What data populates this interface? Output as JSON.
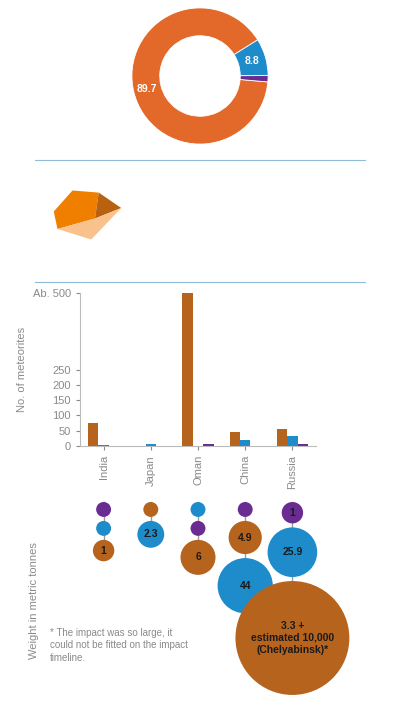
{
  "chart_data": [
    {
      "type": "donut",
      "values": [
        89.7,
        8.8,
        1.5
      ],
      "colors": [
        "#E3692B",
        "#1E8BCB",
        "#6B2C91"
      ],
      "data_labels": true,
      "value_labels": [
        "89.7",
        "8.8",
        null
      ]
    },
    {
      "type": "bar",
      "ylabel": "No. of meteorites",
      "categories": [
        "India",
        "Japan",
        "Oman",
        "China",
        "Russia"
      ],
      "series": [
        {
          "color": "#B5631D",
          "values": [
            76,
            0,
            500,
            46,
            56
          ]
        },
        {
          "color": "#1E8BCB",
          "values": [
            4,
            8,
            1,
            20,
            32
          ]
        },
        {
          "color": "#6B2C91",
          "values": [
            1,
            0,
            8,
            1,
            7
          ]
        }
      ],
      "ylim": [
        0,
        500
      ],
      "yticks": [
        0,
        50,
        100,
        150,
        200,
        250,
        {
          "value": 500,
          "label": "Ab. 500"
        }
      ],
      "grid": false
    },
    {
      "type": "bubble",
      "ylabel": "Weight in metric tonnes",
      "tick_labels": false,
      "stacks": [
        [
          {
            "color": "#6B2C91",
            "value": 0.1,
            "label": null
          },
          {
            "color": "#1E8BCB",
            "value": 0.1,
            "label": null
          },
          {
            "color": "#B5631D",
            "value": 1,
            "label": "1"
          }
        ],
        [
          {
            "color": "#B5631D",
            "value": 0.1,
            "label": null
          },
          {
            "color": "#1E8BCB",
            "value": 2.3,
            "label": "2.3"
          }
        ],
        [
          {
            "color": "#1E8BCB",
            "value": 0.1,
            "label": null
          },
          {
            "color": "#6B2C91",
            "value": 0.1,
            "label": null
          },
          {
            "color": "#B5631D",
            "value": 6,
            "label": "6"
          }
        ],
        [
          {
            "color": "#6B2C91",
            "value": 0.1,
            "label": null
          },
          {
            "color": "#B5631D",
            "value": 4.9,
            "label": "4.9"
          },
          {
            "color": "#1E8BCB",
            "value": 44,
            "label": "44"
          }
        ],
        [
          {
            "color": "#6B2C91",
            "value": 1,
            "label": "1"
          },
          {
            "color": "#1E8BCB",
            "value": 25.9,
            "label": "25.9"
          },
          {
            "color": "#B5631D",
            "value": 10003.3,
            "label": "3.3 +\nestimated 10,000\n(Chelyabinsk)*"
          }
        ]
      ],
      "note": "* The impact was so large, it\ncould not be fitted on the impact\ntimeline."
    }
  ]
}
